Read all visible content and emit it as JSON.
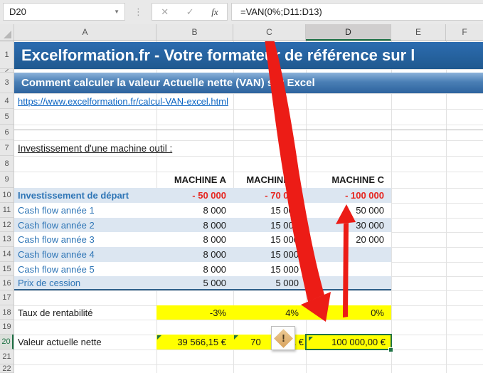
{
  "formula_bar": {
    "cell_reference": "D20",
    "formula": "=VAN(0%;D11:D13)",
    "cancel_glyph": "✕",
    "enter_glyph": "✓",
    "fx_label": "fx"
  },
  "grid": {
    "column_letters": [
      "A",
      "B",
      "C",
      "D",
      "E",
      "F"
    ],
    "row_numbers": [
      "1",
      "2",
      "3",
      "4",
      "5",
      "6",
      "7",
      "8",
      "9",
      "10",
      "11",
      "12",
      "13",
      "14",
      "15",
      "16",
      "17",
      "18",
      "19",
      "20",
      "21",
      "22"
    ],
    "selected_column": "D",
    "selected_row": "20"
  },
  "content": {
    "main_banner": "Excelformation.fr - Votre formateur de référence sur l",
    "sub_banner": "Comment calculer la valeur Actuelle nette (VAN) sur Excel",
    "link": "https://www.excelformation.fr/calcul-VAN-excel.html",
    "section_title": "Investissement d'une machine outil :",
    "machine_headers": [
      "MACHINE A",
      "MACHINE B",
      "MACHINE C"
    ],
    "table_rows": [
      {
        "label": "Investissement de départ",
        "values": [
          "- 50 000",
          "- 70 000",
          "- 100 000"
        ]
      },
      {
        "label": "Cash flow année 1",
        "values": [
          "8 000",
          "15 000",
          "50 000"
        ]
      },
      {
        "label": "Cash flow année 2",
        "values": [
          "8 000",
          "15 000",
          "30 000"
        ]
      },
      {
        "label": "Cash flow année 3",
        "values": [
          "8 000",
          "15 000",
          "20 000"
        ]
      },
      {
        "label": "Cash flow année 4",
        "values": [
          "8 000",
          "15 000",
          ""
        ]
      },
      {
        "label": "Cash flow année 5",
        "values": [
          "8 000",
          "15 000",
          ""
        ]
      },
      {
        "label": "Prix de cession",
        "values": [
          "5 000",
          "5 000",
          ""
        ]
      }
    ],
    "rate_row": {
      "label": "Taux de rentabilité",
      "machine_a": "-3%",
      "machine_b": "4%",
      "machine_c": "0%"
    },
    "van_row": {
      "label": "Valeur actuelle nette",
      "machine_a": "39 566,15 €",
      "machine_b_visible_left": "70",
      "machine_b_visible_right": "91 €",
      "machine_c": "100 000,00 €"
    },
    "warning_glyph": "!"
  },
  "colors": {
    "banner_blue": "#215c98",
    "band_blue": "#dce6f1",
    "table_border_blue": "#31618c",
    "highlight_yellow": "#ffff00",
    "selection_green": "#217346",
    "negative_red": "#e6251f",
    "arrow_red": "#ec1c16",
    "link_blue": "#0a64c2",
    "label_blue": "#2e75b6"
  }
}
